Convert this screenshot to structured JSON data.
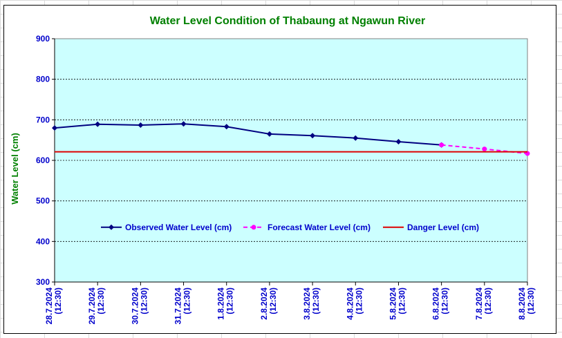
{
  "chart_data": {
    "type": "line",
    "title": "Water Level Condition of Thabaung at Ngawun River",
    "ylabel": "Water Level (cm)",
    "xlabel": "",
    "ylim": [
      300,
      900
    ],
    "yticks": [
      300,
      400,
      500,
      600,
      700,
      800,
      900
    ],
    "categories": [
      "28.7.2024 (12:30)",
      "29.7.2024 (12:30)",
      "30.7.2024 (12:30)",
      "31.7.2024 (12:30)",
      "1.8.2024 (12:30)",
      "2.8.2024 (12:30)",
      "3.8.2024 (12:30)",
      "4.8.2024 (12:30)",
      "5.8.2024 (12:30)",
      "6.8.2024 (12:30)",
      "7.8.2024 (12:30)",
      "8.8.2024 (12:30)"
    ],
    "series": [
      {
        "name": "Observed Water Level (cm)",
        "color": "#000080",
        "style": "solid",
        "marker": "diamond",
        "values": [
          680,
          689,
          687,
          690,
          683,
          665,
          661,
          655,
          646,
          638,
          null,
          null
        ]
      },
      {
        "name": "Forecast Water Level (cm)",
        "color": "#ff00ff",
        "style": "dashed",
        "marker": "circle",
        "values": [
          null,
          null,
          null,
          null,
          null,
          null,
          null,
          null,
          null,
          638,
          628,
          617
        ]
      },
      {
        "name": "Danger Level (cm)",
        "color": "#dd0000",
        "style": "solid",
        "marker": "none",
        "values": [
          621,
          621,
          621,
          621,
          621,
          621,
          621,
          621,
          621,
          621,
          621,
          621
        ]
      }
    ],
    "grid": "horizontal dashed",
    "legend": "inside-lower-center",
    "plot_background": "#ccffff"
  }
}
